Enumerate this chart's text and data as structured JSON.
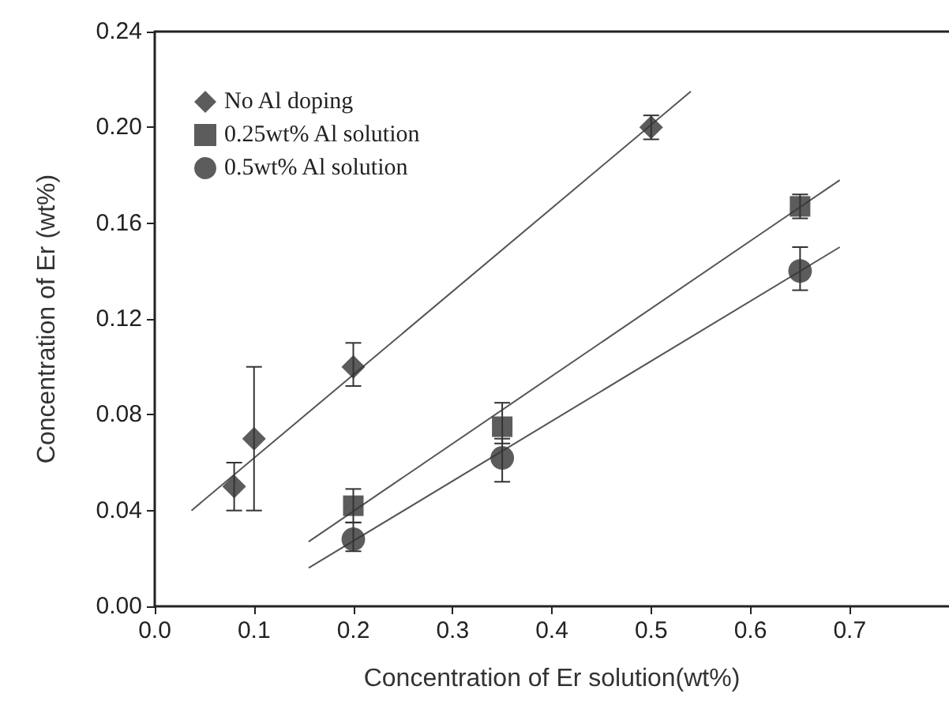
{
  "chart_data": {
    "type": "scatter",
    "xlabel": "Concentration of Er solution(wt%)",
    "ylabel": "Concentration of Er (wt%)",
    "xlim": [
      0,
      0.8
    ],
    "ylim": [
      0,
      0.24
    ],
    "xticks": [
      {
        "value": 0,
        "label": "0.0"
      },
      0.1,
      0.2,
      0.3,
      0.4,
      0.5,
      0.6,
      0.7
    ],
    "yticks": [
      {
        "value": 0,
        "label": "0.00"
      },
      0.04,
      0.08,
      0.12,
      0.16,
      {
        "value": 0.2,
        "label": "0.20"
      },
      0.24
    ],
    "legend": "top left",
    "grid": false,
    "series": [
      {
        "name": "No Al doping",
        "marker": "diamond",
        "color": "#333333",
        "x": [
          0.08,
          0.1,
          0.2,
          0.5
        ],
        "values": [
          0.05,
          0.07,
          0.1,
          0.2
        ],
        "errors": [
          [
            0.04,
            0.06
          ],
          [
            0.04,
            0.1
          ],
          [
            0.092,
            0.11
          ],
          [
            0.195,
            0.205
          ]
        ]
      },
      {
        "name": "0.25wt% Al solution",
        "marker": "square",
        "color": "#333333",
        "x": [
          0.2,
          0.35,
          0.65
        ],
        "values": [
          0.042,
          0.075,
          0.167
        ],
        "errors": [
          [
            0.035,
            0.049
          ],
          [
            0.068,
            0.085
          ],
          [
            0.162,
            0.172
          ]
        ]
      },
      {
        "name": "0.5wt% Al solution",
        "marker": "circle",
        "color": "#333333",
        "x": [
          0.2,
          0.35,
          0.65
        ],
        "values": [
          0.028,
          0.062,
          0.14
        ],
        "errors": [
          [
            0.023,
            0.035
          ],
          [
            0.052,
            0.07
          ],
          [
            0.132,
            0.15
          ]
        ]
      },
      {
        "type": "line",
        "marker": "none",
        "color": "#555555",
        "x": [
          0.037,
          0.54
        ],
        "values": [
          0.04,
          0.215
        ]
      },
      {
        "type": "line",
        "marker": "none",
        "color": "#555555",
        "x": [
          0.155,
          0.69
        ],
        "values": [
          0.027,
          0.178
        ]
      },
      {
        "type": "line",
        "marker": "none",
        "color": "#555555",
        "x": [
          0.155,
          0.69
        ],
        "values": [
          0.016,
          0.15
        ]
      }
    ]
  }
}
